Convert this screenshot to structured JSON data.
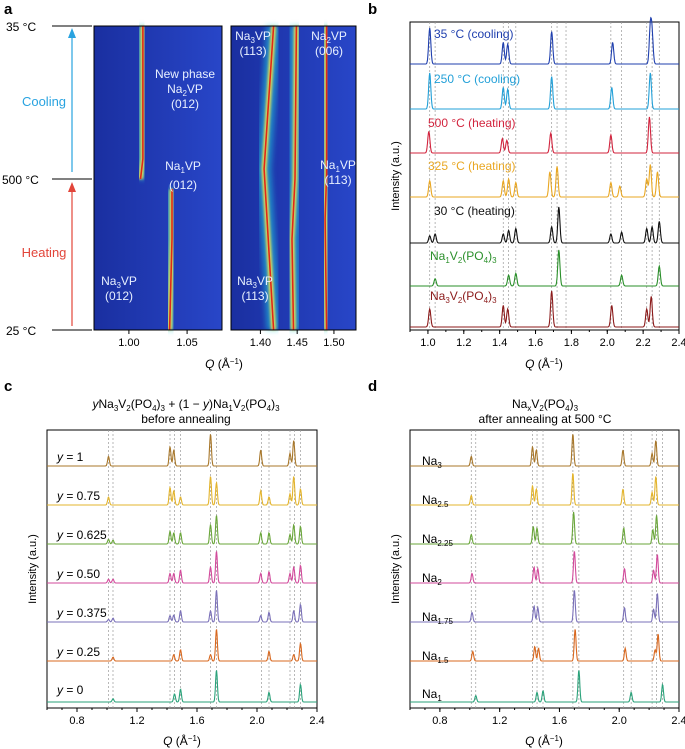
{
  "panel_a": {
    "letter": "a",
    "temp_labels": [
      "35 °C",
      "500 °C",
      "25 °C"
    ],
    "cooling_label": "Cooling",
    "heating_label": "Heating",
    "xlabel_q": "Q",
    "xlabel_unit": " (Å",
    "xlabel_sup": "−1",
    "xlabel_end": ")",
    "left_ticks": [
      "1.00",
      "1.05"
    ],
    "right_ticks": [
      "1.40",
      "1.45",
      "1.50"
    ],
    "annotations": [
      {
        "line1": "New phase",
        "sym": "Na",
        "sub": "2",
        "tail": "VP",
        "line2": "(012)",
        "color": "#e8f0ff"
      },
      {
        "sym": "Na",
        "sub": "1",
        "tail": "VP",
        "line2": "(012)",
        "color": "#e8f0ff"
      },
      {
        "sym": "Na",
        "sub": "3",
        "tail": "VP",
        "line2": "(012)",
        "color": "#e8f0ff"
      },
      {
        "sym": "Na",
        "sub": "3",
        "tail": "VP",
        "line2": "(113)",
        "color": "#e8f0ff"
      },
      {
        "sym": "Na",
        "sub": "2",
        "tail": "VP",
        "line2": "(006)",
        "color": "#e8f0ff"
      },
      {
        "sym": "Na",
        "sub": "1",
        "tail": "VP",
        "line2": "(113)",
        "color": "#e8f0ff"
      },
      {
        "sym": "Na",
        "sub": "3",
        "tail": "VP",
        "line2": "(113)",
        "color": "#e8f0ff"
      }
    ]
  },
  "panel_b": {
    "letter": "b",
    "ylabel": "Intensity (a.u.)",
    "labels": [
      {
        "text": "35 °C (cooling)",
        "color": "#1f3fae"
      },
      {
        "text": "250 °C (cooling)",
        "color": "#22a0d8"
      },
      {
        "text": "500 °C (heating)",
        "color": "#d2243e"
      },
      {
        "text": "325 °C (heating)",
        "color": "#e9a722"
      },
      {
        "text": "30 °C (heating)",
        "color": "#111111"
      },
      {
        "text": "Na1V2(PO4)3",
        "color": "#2a8f2a"
      },
      {
        "text": "Na3V2(PO4)3",
        "color": "#8b1a1a"
      }
    ]
  },
  "panel_c": {
    "letter": "c",
    "title_line1": "yNa3V2(PO4)3 + (1 − y)Na1V2(PO4)3",
    "title_line2": "before annealing",
    "ylabel": "Intensity (a.u.)",
    "labels": [
      "y = 1",
      "y = 0.75",
      "y = 0.625",
      "y = 0.50",
      "y = 0.375",
      "y = 0.25",
      "y = 0"
    ],
    "colors": [
      "#a8772a",
      "#e3b42c",
      "#6aa63a",
      "#d24a9b",
      "#7a70b8",
      "#d8681f",
      "#2aa27a"
    ]
  },
  "panel_d": {
    "letter": "d",
    "title_line1": "NaxV2(PO4)3",
    "title_line2": "after annealing at 500 °C",
    "ylabel": "Intensity (a.u.)",
    "labels": [
      "Na3",
      "Na2.5",
      "Na2.25",
      "Na2",
      "Na1.75",
      "Na1.5",
      "Na1"
    ],
    "colors": [
      "#a8772a",
      "#e3b42c",
      "#6aa63a",
      "#d24a9b",
      "#7a70b8",
      "#d8681f",
      "#2aa27a"
    ]
  },
  "chart_data": [
    {
      "type": "heatmap",
      "panel": "a",
      "title": "",
      "xlabel": "Q (Å−1)",
      "ylabel": "",
      "xlim_left": [
        0.97,
        1.08
      ],
      "xlim_right": [
        1.36,
        1.53
      ],
      "y_temperatures": [
        "25 °C",
        "500 °C",
        "35 °C"
      ],
      "ridges": [
        {
          "name": "Na3VP (012)",
          "q_bottom": 1.035,
          "q_500": 1.037
        },
        {
          "name": "Na2VP (012)",
          "q_500": 1.012,
          "q_top": 1.012
        },
        {
          "name": "Na3VP (113)",
          "q_bottom": 1.418,
          "q_500": 1.405,
          "q_top": 1.418
        },
        {
          "name": "Na2VP (006)",
          "q_500": 1.447,
          "q_top": 1.449
        },
        {
          "name": "Na1VP (113)",
          "q_500": 1.488,
          "q_bottom": 1.49,
          "q_top": 1.49
        }
      ]
    },
    {
      "type": "line",
      "panel": "b",
      "xlabel": "Q (Å−1)",
      "ylabel": "Intensity (a.u.)",
      "xlim": [
        0.9,
        2.4
      ],
      "xticks": [
        1.0,
        1.2,
        1.4,
        1.6,
        1.8,
        2.0,
        2.2,
        2.4
      ],
      "ref_lines": [
        1.01,
        1.04,
        1.42,
        1.45,
        1.49,
        1.69,
        1.72,
        1.77,
        2.02,
        2.08,
        2.22,
        2.25,
        2.29
      ],
      "series": [
        {
          "name": "35 °C (cooling)",
          "peaks": [
            [
              1.01,
              1.0
            ],
            [
              1.42,
              0.6
            ],
            [
              1.445,
              0.55
            ],
            [
              1.69,
              0.9
            ],
            [
              2.03,
              0.6
            ],
            [
              2.24,
              1.0
            ],
            [
              2.25,
              0.8
            ]
          ]
        },
        {
          "name": "250 °C (cooling)",
          "peaks": [
            [
              1.01,
              1.0
            ],
            [
              1.42,
              0.6
            ],
            [
              1.445,
              0.55
            ],
            [
              1.69,
              0.9
            ],
            [
              2.025,
              0.6
            ],
            [
              2.24,
              1.0
            ]
          ]
        },
        {
          "name": "500 °C (heating)",
          "peaks": [
            [
              1.005,
              0.6
            ],
            [
              1.415,
              0.4
            ],
            [
              1.44,
              0.35
            ],
            [
              1.685,
              0.55
            ],
            [
              2.02,
              0.5
            ],
            [
              2.235,
              1.0
            ]
          ]
        },
        {
          "name": "325 °C (heating)",
          "peaks": [
            [
              1.01,
              0.45
            ],
            [
              1.42,
              0.45
            ],
            [
              1.45,
              0.5
            ],
            [
              1.49,
              0.4
            ],
            [
              1.68,
              0.7
            ],
            [
              1.72,
              0.85
            ],
            [
              2.02,
              0.4
            ],
            [
              2.07,
              0.3
            ],
            [
              2.22,
              0.5
            ],
            [
              2.24,
              0.9
            ],
            [
              2.28,
              0.7
            ]
          ]
        },
        {
          "name": "30 °C (heating)",
          "peaks": [
            [
              1.01,
              0.2
            ],
            [
              1.04,
              0.25
            ],
            [
              1.42,
              0.25
            ],
            [
              1.45,
              0.35
            ],
            [
              1.49,
              0.4
            ],
            [
              1.69,
              0.45
            ],
            [
              1.73,
              1.0
            ],
            [
              2.02,
              0.25
            ],
            [
              2.08,
              0.3
            ],
            [
              2.22,
              0.4
            ],
            [
              2.25,
              0.45
            ],
            [
              2.29,
              0.6
            ]
          ]
        },
        {
          "name": "Na1V2(PO4)3",
          "peaks": [
            [
              1.04,
              0.2
            ],
            [
              1.45,
              0.3
            ],
            [
              1.49,
              0.35
            ],
            [
              1.73,
              1.0
            ],
            [
              2.08,
              0.3
            ],
            [
              2.29,
              0.55
            ]
          ]
        },
        {
          "name": "Na3V2(PO4)3",
          "peaks": [
            [
              1.01,
              0.5
            ],
            [
              1.42,
              0.6
            ],
            [
              1.445,
              0.5
            ],
            [
              1.69,
              1.0
            ],
            [
              2.025,
              0.6
            ],
            [
              2.22,
              0.5
            ],
            [
              2.245,
              0.85
            ]
          ]
        }
      ]
    },
    {
      "type": "line",
      "panel": "c",
      "xlabel": "Q (Å−1)",
      "ylabel": "Intensity (a.u.)",
      "xlim": [
        0.6,
        2.4
      ],
      "xticks": [
        0.8,
        1.2,
        1.6,
        2.0,
        2.4
      ],
      "ref_lines": [
        1.01,
        1.04,
        1.42,
        1.45,
        1.49,
        1.69,
        1.73,
        2.03,
        2.08,
        2.22,
        2.25,
        2.29
      ],
      "series": [
        {
          "name": "y = 1",
          "peaks": [
            [
              1.01,
              0.3
            ],
            [
              1.42,
              0.6
            ],
            [
              1.445,
              0.5
            ],
            [
              1.69,
              1.0
            ],
            [
              2.025,
              0.5
            ],
            [
              2.22,
              0.4
            ],
            [
              2.245,
              0.8
            ]
          ]
        },
        {
          "name": "y = 0.75",
          "peaks": [
            [
              1.01,
              0.25
            ],
            [
              1.42,
              0.55
            ],
            [
              1.445,
              0.45
            ],
            [
              1.49,
              0.25
            ],
            [
              1.69,
              0.9
            ],
            [
              1.73,
              0.7
            ],
            [
              2.025,
              0.45
            ],
            [
              2.08,
              0.25
            ],
            [
              2.22,
              0.35
            ],
            [
              2.245,
              0.9
            ],
            [
              2.29,
              0.5
            ]
          ]
        },
        {
          "name": "y = 0.625",
          "peaks": [
            [
              1.01,
              0.15
            ],
            [
              1.04,
              0.12
            ],
            [
              1.42,
              0.4
            ],
            [
              1.445,
              0.35
            ],
            [
              1.49,
              0.35
            ],
            [
              1.69,
              0.6
            ],
            [
              1.73,
              0.9
            ],
            [
              2.025,
              0.35
            ],
            [
              2.08,
              0.35
            ],
            [
              2.22,
              0.3
            ],
            [
              2.245,
              0.6
            ],
            [
              2.29,
              0.55
            ]
          ]
        },
        {
          "name": "y = 0.50",
          "peaks": [
            [
              1.01,
              0.12
            ],
            [
              1.04,
              0.12
            ],
            [
              1.42,
              0.3
            ],
            [
              1.445,
              0.3
            ],
            [
              1.49,
              0.4
            ],
            [
              1.69,
              0.5
            ],
            [
              1.73,
              1.0
            ],
            [
              2.025,
              0.3
            ],
            [
              2.08,
              0.35
            ],
            [
              2.22,
              0.3
            ],
            [
              2.245,
              0.5
            ],
            [
              2.29,
              0.55
            ]
          ]
        },
        {
          "name": "y = 0.375",
          "peaks": [
            [
              1.01,
              0.08
            ],
            [
              1.04,
              0.12
            ],
            [
              1.42,
              0.2
            ],
            [
              1.445,
              0.22
            ],
            [
              1.49,
              0.35
            ],
            [
              1.69,
              0.35
            ],
            [
              1.73,
              1.0
            ],
            [
              2.025,
              0.2
            ],
            [
              2.08,
              0.3
            ],
            [
              2.245,
              0.35
            ],
            [
              2.29,
              0.55
            ]
          ]
        },
        {
          "name": "y = 0.25",
          "peaks": [
            [
              1.04,
              0.12
            ],
            [
              1.445,
              0.2
            ],
            [
              1.49,
              0.35
            ],
            [
              1.69,
              0.2
            ],
            [
              1.73,
              1.0
            ],
            [
              2.08,
              0.3
            ],
            [
              2.245,
              0.2
            ],
            [
              2.29,
              0.55
            ]
          ]
        },
        {
          "name": "y = 0",
          "peaks": [
            [
              1.04,
              0.1
            ],
            [
              1.45,
              0.25
            ],
            [
              1.49,
              0.4
            ],
            [
              1.73,
              1.0
            ],
            [
              2.08,
              0.3
            ],
            [
              2.29,
              0.55
            ]
          ]
        }
      ]
    },
    {
      "type": "line",
      "panel": "d",
      "xlabel": "Q (Å−1)",
      "ylabel": "Intensity (a.u.)",
      "xlim": [
        0.6,
        2.4
      ],
      "xticks": [
        0.8,
        1.2,
        1.6,
        2.0,
        2.4
      ],
      "ref_lines": [
        1.01,
        1.04,
        1.42,
        1.45,
        1.49,
        1.69,
        1.73,
        2.03,
        2.08,
        2.22,
        2.25,
        2.29
      ],
      "series": [
        {
          "name": "Na3",
          "peaks": [
            [
              1.01,
              0.3
            ],
            [
              1.42,
              0.6
            ],
            [
              1.445,
              0.5
            ],
            [
              1.69,
              1.0
            ],
            [
              2.025,
              0.5
            ],
            [
              2.22,
              0.4
            ],
            [
              2.245,
              0.8
            ]
          ]
        },
        {
          "name": "Na2.5",
          "peaks": [
            [
              1.01,
              0.3
            ],
            [
              1.42,
              0.6
            ],
            [
              1.445,
              0.5
            ],
            [
              1.69,
              1.0
            ],
            [
              2.025,
              0.5
            ],
            [
              2.22,
              0.4
            ],
            [
              2.245,
              0.9
            ]
          ]
        },
        {
          "name": "Na2.25",
          "peaks": [
            [
              1.01,
              0.3
            ],
            [
              1.425,
              0.55
            ],
            [
              1.45,
              0.5
            ],
            [
              1.695,
              1.0
            ],
            [
              2.03,
              0.5
            ],
            [
              2.225,
              0.45
            ],
            [
              2.25,
              0.9
            ]
          ]
        },
        {
          "name": "Na2",
          "peaks": [
            [
              1.015,
              0.3
            ],
            [
              1.43,
              0.5
            ],
            [
              1.455,
              0.45
            ],
            [
              1.7,
              1.0
            ],
            [
              2.035,
              0.45
            ],
            [
              2.23,
              0.4
            ],
            [
              2.255,
              0.9
            ]
          ]
        },
        {
          "name": "Na1.75",
          "peaks": [
            [
              1.015,
              0.3
            ],
            [
              1.43,
              0.5
            ],
            [
              1.455,
              0.45
            ],
            [
              1.7,
              1.0
            ],
            [
              2.035,
              0.45
            ],
            [
              2.23,
              0.4
            ],
            [
              2.255,
              0.9
            ]
          ]
        },
        {
          "name": "Na1.5",
          "peaks": [
            [
              1.02,
              0.3
            ],
            [
              1.435,
              0.45
            ],
            [
              1.46,
              0.4
            ],
            [
              1.705,
              1.0
            ],
            [
              2.04,
              0.4
            ],
            [
              2.24,
              0.35
            ],
            [
              2.26,
              0.85
            ]
          ]
        },
        {
          "name": "Na1",
          "peaks": [
            [
              1.04,
              0.2
            ],
            [
              1.45,
              0.3
            ],
            [
              1.49,
              0.35
            ],
            [
              1.73,
              1.0
            ],
            [
              2.08,
              0.3
            ],
            [
              2.29,
              0.55
            ]
          ]
        }
      ]
    }
  ]
}
